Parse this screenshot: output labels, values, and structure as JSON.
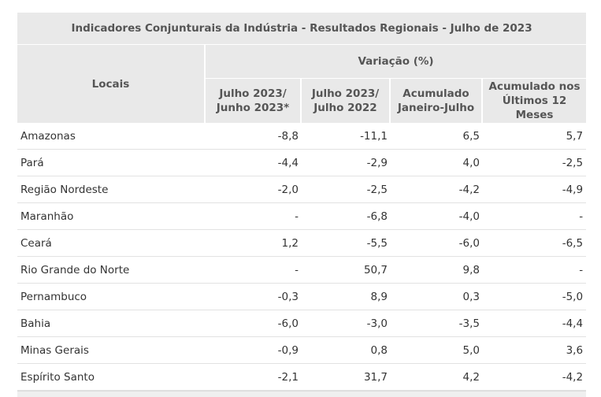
{
  "table": {
    "title": "Indicadores Conjunturais da Indústria  -  Resultados Regionais  -  Julho de 2023",
    "locais_header": "Locais",
    "variacao_header": "Variação (%)",
    "columns": [
      {
        "line1": "Julho 2023/",
        "line2": "Junho 2023*"
      },
      {
        "line1": "Julho 2023/",
        "line2": "Julho 2022"
      },
      {
        "line1": "Acumulado",
        "line2": "Janeiro-Julho"
      },
      {
        "line1": "Acumulado nos",
        "line2": "Últimos 12 Meses"
      }
    ],
    "rows": [
      {
        "name": "Amazonas",
        "values": [
          "-8,8",
          "-11,1",
          "6,5",
          "5,7"
        ]
      },
      {
        "name": "Pará",
        "values": [
          "-4,4",
          "-2,9",
          "4,0",
          "-2,5"
        ]
      },
      {
        "name": "Região Nordeste",
        "values": [
          "-2,0",
          "-2,5",
          "-4,2",
          "-4,9"
        ]
      },
      {
        "name": "Maranhão",
        "values": [
          "-",
          "-6,8",
          "-4,0",
          "-"
        ]
      },
      {
        "name": "Ceará",
        "values": [
          "1,2",
          "-5,5",
          "-6,0",
          "-6,5"
        ]
      },
      {
        "name": "Rio Grande do Norte",
        "values": [
          "-",
          "50,7",
          "9,8",
          "-"
        ]
      },
      {
        "name": "Pernambuco",
        "values": [
          "-0,3",
          "8,9",
          "0,3",
          "-5,0"
        ]
      },
      {
        "name": "Bahia",
        "values": [
          "-6,0",
          "-3,0",
          "-3,5",
          "-4,4"
        ]
      },
      {
        "name": "Minas Gerais",
        "values": [
          "-0,9",
          "0,8",
          "5,0",
          "3,6"
        ]
      },
      {
        "name": "Espírito Santo",
        "values": [
          "-2,1",
          "31,7",
          "4,2",
          "-4,2"
        ]
      }
    ]
  }
}
